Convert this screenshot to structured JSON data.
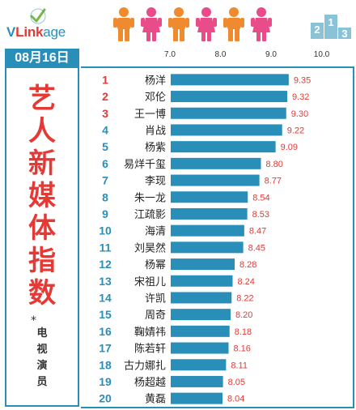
{
  "logo": {
    "text_v": "V",
    "text_link": "Link",
    "text_age": "age"
  },
  "date": "08月16日",
  "title_chars": [
    "艺",
    "人",
    "新",
    "媒",
    "体",
    "指",
    "数"
  ],
  "subtitle_star": "*",
  "subtitle_chars": [
    "电",
    "视",
    "演",
    "员"
  ],
  "colors": {
    "accent": "#2a8fb8",
    "bar": "#2a8fb8",
    "rank_red": "#e53935",
    "rank_blue": "#2a8fb8",
    "value": "#e53935",
    "orange_figure": "#ef8a2e",
    "pink_figure": "#e84c89"
  },
  "figures": [
    "orange",
    "pink",
    "orange",
    "pink",
    "orange",
    "pink"
  ],
  "chart_data": {
    "type": "bar",
    "orientation": "horizontal",
    "axis_ticks": [
      "7.0",
      "8.0",
      "9.0",
      "10.0"
    ],
    "xlim": [
      7.0,
      10.0
    ],
    "ranks": [
      "1",
      "2",
      "3",
      "4",
      "5",
      "6",
      "7",
      "8",
      "9",
      "10",
      "11",
      "12",
      "13",
      "14",
      "15",
      "16",
      "17",
      "18",
      "19",
      "20"
    ],
    "categories": [
      "杨洋",
      "邓伦",
      "王一博",
      "肖战",
      "杨紫",
      "易烊千玺",
      "李现",
      "朱一龙",
      "江疏影",
      "海清",
      "刘昊然",
      "杨幂",
      "宋祖儿",
      "许凯",
      "周奇",
      "鞠婧祎",
      "陈若轩",
      "古力娜扎",
      "杨超越",
      "黄磊"
    ],
    "values": [
      9.35,
      9.32,
      9.3,
      9.22,
      9.09,
      8.8,
      8.77,
      8.54,
      8.53,
      8.47,
      8.45,
      8.28,
      8.24,
      8.22,
      8.2,
      8.18,
      8.16,
      8.11,
      8.05,
      8.04
    ],
    "value_labels": [
      "9.35",
      "9.32",
      "9.30",
      "9.22",
      "9.09",
      "8.80",
      "8.77",
      "8.54",
      "8.53",
      "8.47",
      "8.45",
      "8.28",
      "8.24",
      "8.22",
      "8.20",
      "8.18",
      "8.16",
      "8.11",
      "8.05",
      "8.04"
    ]
  }
}
